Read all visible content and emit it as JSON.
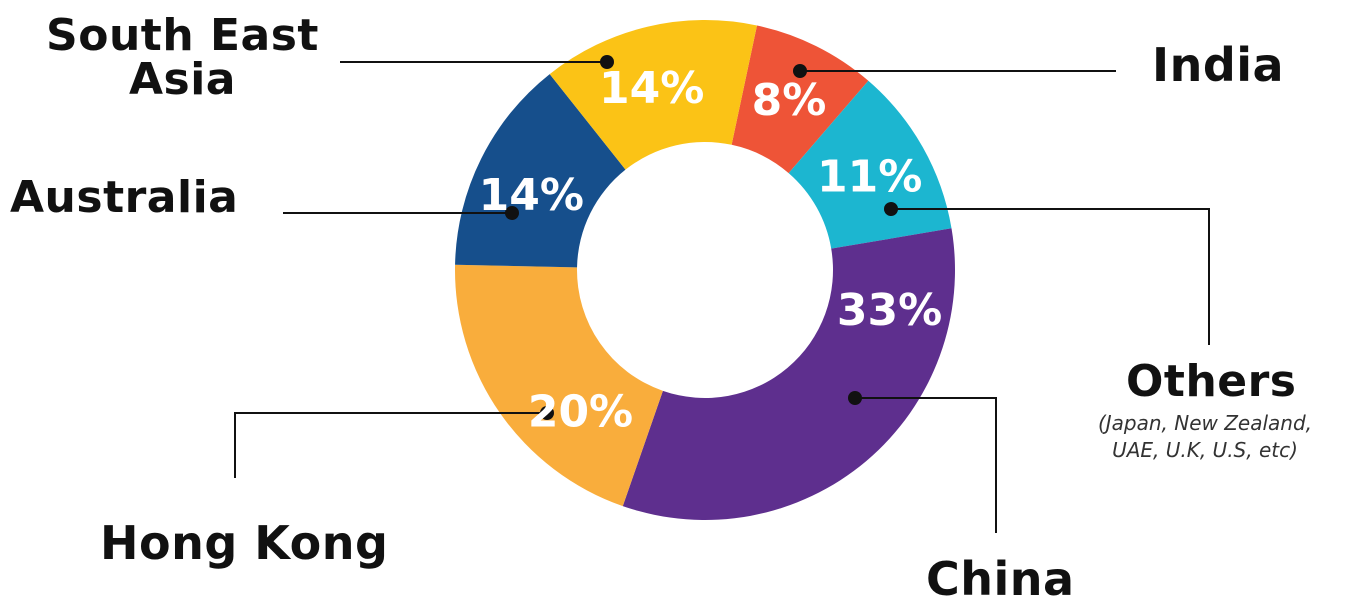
{
  "chart_data": {
    "type": "pie",
    "title": "",
    "categories": [
      "India",
      "Others",
      "China",
      "Hong Kong",
      "Australia",
      "South East Asia"
    ],
    "values": [
      8,
      11,
      33,
      20,
      14,
      14
    ],
    "value_labels": [
      "8%",
      "11%",
      "33%",
      "20%",
      "14%",
      "14%"
    ],
    "labels": {
      "india": "India",
      "others": "Others",
      "others_note_1": "(Japan, New Zealand,",
      "others_note_2": "UAE, U.K, U.S, etc)",
      "china": "China",
      "hong_kong": "Hong Kong",
      "australia": "Australia",
      "sea_1": "South East",
      "sea_2": "Asia"
    },
    "colors": [
      "#ee5437",
      "#1cb6d0",
      "#5e2f8e",
      "#f9ad3c",
      "#164f8c",
      "#fbc316"
    ],
    "start_angle_deg": 12,
    "legend": "none",
    "donut": true
  }
}
